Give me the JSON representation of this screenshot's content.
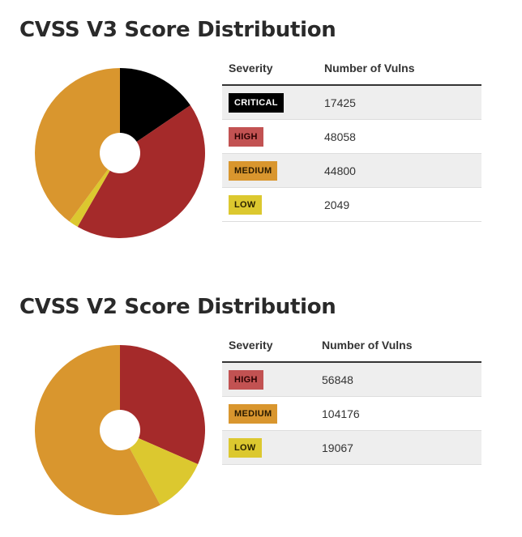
{
  "chart_data": [
    {
      "type": "pie",
      "title": "CVSS V3 Score Distribution",
      "columns": [
        "Severity",
        "Number of Vulns"
      ],
      "categories": [
        "CRITICAL",
        "HIGH",
        "MEDIUM",
        "LOW"
      ],
      "values": [
        17425,
        48058,
        44800,
        2049
      ],
      "value_labels": [
        "17425",
        "48058",
        "44800",
        "2049"
      ],
      "pie_order": [
        0,
        1,
        3,
        2
      ],
      "colors": [
        "#000000",
        "#a52a2a",
        "#d9962e",
        "#dcc82f"
      ],
      "badge_bg": [
        "#000000",
        "#c25252",
        "#d9962e",
        "#dcc82f"
      ],
      "badge_fg": [
        "#ffffff",
        "#2a0000",
        "#2a1a00",
        "#2a2200"
      ]
    },
    {
      "type": "pie",
      "title": "CVSS V2 Score Distribution",
      "columns": [
        "Severity",
        "Number of Vulns"
      ],
      "categories": [
        "HIGH",
        "MEDIUM",
        "LOW"
      ],
      "values": [
        56848,
        104176,
        19067
      ],
      "value_labels": [
        "56848",
        "104176",
        "19067"
      ],
      "pie_order": [
        0,
        2,
        1
      ],
      "colors": [
        "#a52a2a",
        "#d9962e",
        "#dcc82f"
      ],
      "badge_bg": [
        "#c25252",
        "#d9962e",
        "#dcc82f"
      ],
      "badge_fg": [
        "#2a0000",
        "#2a1a00",
        "#2a2200"
      ]
    }
  ]
}
